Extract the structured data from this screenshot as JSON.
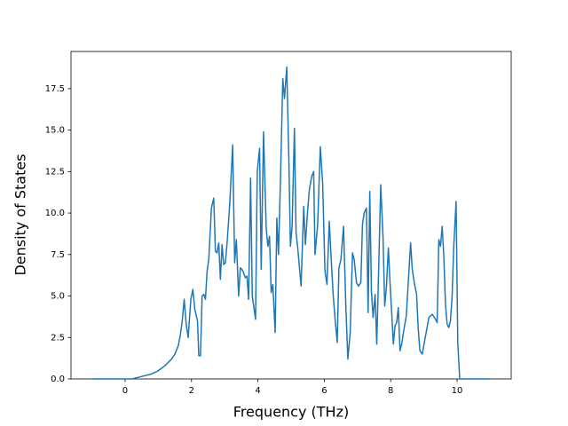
{
  "chart_data": {
    "type": "line",
    "x_label": "Frequency (THz)",
    "y_label": "Density of States",
    "x": [
      -1,
      0.2,
      0.3,
      0.5,
      0.8,
      1.0,
      1.2,
      1.4,
      1.5,
      1.6,
      1.66,
      1.72,
      1.78,
      1.84,
      1.9,
      1.98,
      2.04,
      2.1,
      2.18,
      2.22,
      2.27,
      2.32,
      2.37,
      2.42,
      2.47,
      2.52,
      2.6,
      2.67,
      2.72,
      2.77,
      2.82,
      2.87,
      2.92,
      2.97,
      3.02,
      3.08,
      3.15,
      3.24,
      3.3,
      3.35,
      3.42,
      3.47,
      3.52,
      3.57,
      3.62,
      3.67,
      3.72,
      3.78,
      3.83,
      3.93,
      3.98,
      4.05,
      4.1,
      4.17,
      4.25,
      4.3,
      4.35,
      4.4,
      4.45,
      4.52,
      4.57,
      4.62,
      4.68,
      4.75,
      4.8,
      4.87,
      4.93,
      4.98,
      5.03,
      5.1,
      5.15,
      5.2,
      5.3,
      5.38,
      5.43,
      5.5,
      5.55,
      5.62,
      5.68,
      5.72,
      5.8,
      5.88,
      5.95,
      6.02,
      6.08,
      6.15,
      6.2,
      6.27,
      6.33,
      6.39,
      6.44,
      6.5,
      6.58,
      6.65,
      6.71,
      6.78,
      6.85,
      6.9,
      6.97,
      7.03,
      7.1,
      7.15,
      7.2,
      7.27,
      7.32,
      7.37,
      7.42,
      7.47,
      7.53,
      7.58,
      7.63,
      7.7,
      7.77,
      7.82,
      7.87,
      7.93,
      7.98,
      8.03,
      8.08,
      8.13,
      8.18,
      8.23,
      8.28,
      8.33,
      8.4,
      8.47,
      8.6,
      8.65,
      8.72,
      8.78,
      8.83,
      8.88,
      8.95,
      9.05,
      9.15,
      9.25,
      9.35,
      9.4,
      9.45,
      9.5,
      9.55,
      9.6,
      9.65,
      9.7,
      9.75,
      9.8,
      9.85,
      9.9,
      9.97,
      10.02,
      10.08,
      11
    ],
    "values": [
      0,
      0,
      0.05,
      0.15,
      0.3,
      0.5,
      0.8,
      1.2,
      1.5,
      2.0,
      2.6,
      3.5,
      4.8,
      3.3,
      2.5,
      4.8,
      5.4,
      4.2,
      3.5,
      1.4,
      1.4,
      5.0,
      5.1,
      4.8,
      6.5,
      7.2,
      10.3,
      10.9,
      7.7,
      7.6,
      8.2,
      6.0,
      8.1,
      6.9,
      7.0,
      8.4,
      10.5,
      14.1,
      7.0,
      8.4,
      5.0,
      6.7,
      6.6,
      6.4,
      6.1,
      6.2,
      4.8,
      12.1,
      5.0,
      3.6,
      12.5,
      13.9,
      6.6,
      14.9,
      9.1,
      8.0,
      8.6,
      5.2,
      5.7,
      2.8,
      9.7,
      7.5,
      12.0,
      18.1,
      16.9,
      18.8,
      13.5,
      8.0,
      9.2,
      15.1,
      8.8,
      7.9,
      5.6,
      10.4,
      8.1,
      10.2,
      11.4,
      12.2,
      12.5,
      7.5,
      9.3,
      14.0,
      11.8,
      6.5,
      5.7,
      9.5,
      7.5,
      5.0,
      3.5,
      2.2,
      6.7,
      7.2,
      9.2,
      4.3,
      1.2,
      2.8,
      7.6,
      7.2,
      5.8,
      5.6,
      5.8,
      9.3,
      10.0,
      10.3,
      4.0,
      11.3,
      5.3,
      3.7,
      5.1,
      2.1,
      6.0,
      11.7,
      8.5,
      4.4,
      5.5,
      7.9,
      5.8,
      4.0,
      2.1,
      3.2,
      3.4,
      4.3,
      1.7,
      2.1,
      3.0,
      3.8,
      8.2,
      6.6,
      5.7,
      5.1,
      3.0,
      1.7,
      1.5,
      2.6,
      3.7,
      3.9,
      3.6,
      3.4,
      8.4,
      8.0,
      9.2,
      7.4,
      4.5,
      3.3,
      3.1,
      3.5,
      5.0,
      8.0,
      10.7,
      2.2,
      0,
      0
    ],
    "color": "#1f77b4",
    "xlim": [
      -1.63,
      11.63
    ],
    "xticks": [
      0,
      2,
      4,
      6,
      8,
      10
    ],
    "ylim": [
      0,
      19.74
    ],
    "yticks": [
      {
        "value": 0,
        "label": "0.0"
      },
      2.5,
      {
        "value": 5,
        "label": "5.0"
      },
      7.5,
      {
        "value": 10,
        "label": "10.0"
      },
      12.5,
      {
        "value": 15,
        "label": "15.0"
      },
      17.5
    ]
  }
}
